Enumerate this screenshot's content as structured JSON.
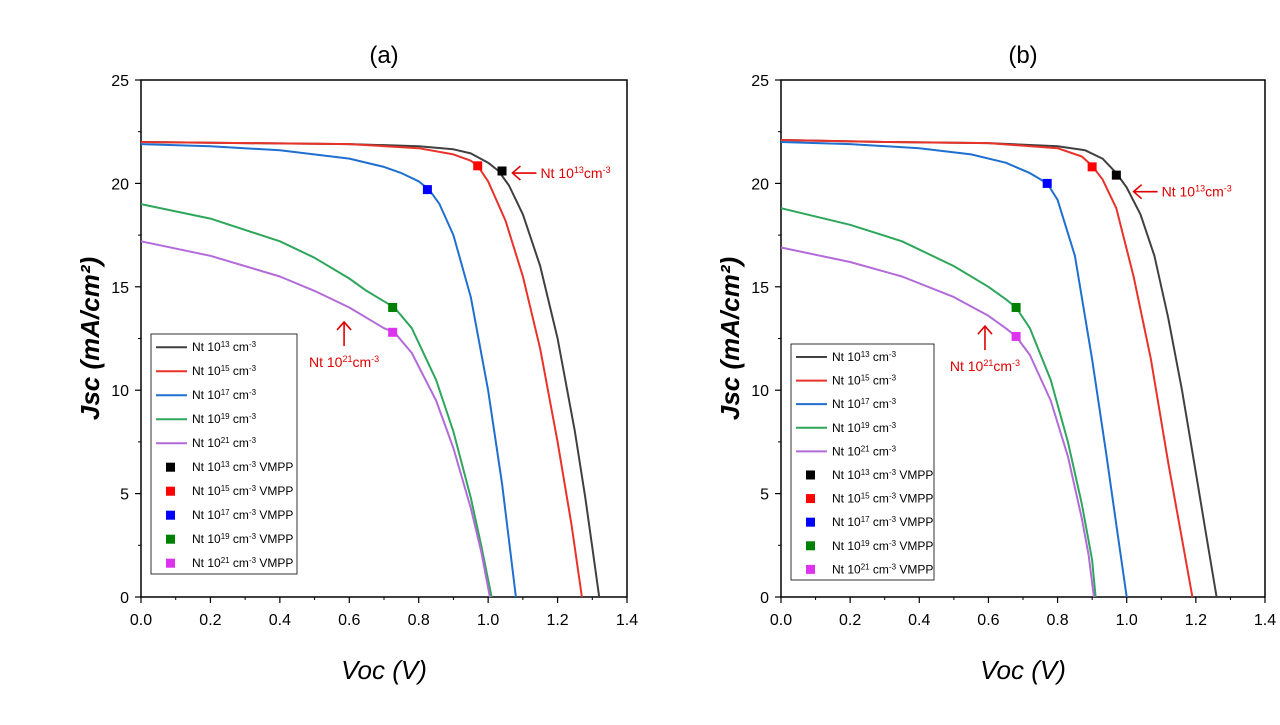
{
  "chart_data": [
    {
      "type": "line",
      "title": "(a)",
      "xlabel": "Voc (V)",
      "ylabel": "Jsc (mA/cm²)",
      "xlim": [
        0,
        1.4
      ],
      "ylim": [
        0,
        25
      ],
      "xticks": [
        "0.0",
        "0.2",
        "0.4",
        "0.6",
        "0.8",
        "1.0",
        "1.2",
        "1.4"
      ],
      "yticks": [
        "0",
        "5",
        "10",
        "15",
        "20",
        "25"
      ],
      "grid": false,
      "legend_position": "bottom-left",
      "series": [
        {
          "name": "Nt 10",
          "sup": "13",
          "unit": " cm",
          "unit_sup": "-3",
          "color": "#404040",
          "x": [
            0,
            0.3,
            0.6,
            0.8,
            0.9,
            0.95,
            1.0,
            1.03,
            1.06,
            1.1,
            1.15,
            1.2,
            1.25,
            1.28,
            1.3,
            1.32
          ],
          "y": [
            22.0,
            21.95,
            21.9,
            21.8,
            21.65,
            21.45,
            21.0,
            20.6,
            19.9,
            18.5,
            16.0,
            12.5,
            8.0,
            4.8,
            2.4,
            0
          ]
        },
        {
          "name": "Nt 10",
          "sup": "15",
          "unit": " cm",
          "unit_sup": "-3",
          "color": "#e8322a",
          "x": [
            0,
            0.3,
            0.6,
            0.8,
            0.9,
            0.95,
            0.97,
            1.0,
            1.05,
            1.1,
            1.15,
            1.2,
            1.24,
            1.27
          ],
          "y": [
            22.0,
            21.95,
            21.9,
            21.7,
            21.4,
            21.1,
            20.85,
            20.1,
            18.2,
            15.5,
            12.0,
            7.5,
            3.5,
            0
          ]
        },
        {
          "name": "Nt 10",
          "sup": "17",
          "unit": " cm",
          "unit_sup": "-3",
          "color": "#1f6fd0",
          "x": [
            0,
            0.2,
            0.4,
            0.6,
            0.7,
            0.75,
            0.8,
            0.83,
            0.86,
            0.9,
            0.95,
            1.0,
            1.04,
            1.08
          ],
          "y": [
            21.9,
            21.8,
            21.6,
            21.2,
            20.8,
            20.5,
            20.1,
            19.7,
            19.0,
            17.5,
            14.5,
            10.0,
            5.5,
            0
          ]
        },
        {
          "name": "Nt 10",
          "sup": "19",
          "unit": " cm",
          "unit_sup": "-3",
          "color": "#2ea65c",
          "x": [
            0,
            0.2,
            0.4,
            0.5,
            0.6,
            0.65,
            0.7,
            0.73,
            0.78,
            0.85,
            0.9,
            0.95,
            0.98,
            1.01
          ],
          "y": [
            19.0,
            18.3,
            17.2,
            16.4,
            15.4,
            14.8,
            14.3,
            14.0,
            13.0,
            10.5,
            8.0,
            4.8,
            2.5,
            0
          ]
        },
        {
          "name": "Nt 10",
          "sup": "21",
          "unit": " cm",
          "unit_sup": "-3",
          "color": "#b26bd8",
          "x": [
            0,
            0.2,
            0.4,
            0.5,
            0.6,
            0.65,
            0.7,
            0.73,
            0.78,
            0.85,
            0.9,
            0.95,
            0.98,
            1.005
          ],
          "y": [
            17.2,
            16.5,
            15.5,
            14.8,
            14.0,
            13.5,
            13.0,
            12.8,
            11.8,
            9.5,
            7.2,
            4.3,
            2.2,
            0
          ]
        }
      ],
      "vmpp": [
        {
          "name": "Nt 10",
          "sup": "13",
          "unit": " cm",
          "unit_sup": "-3",
          "suffix": " VMPP",
          "color": "#000000",
          "x": 1.04,
          "y": 20.6
        },
        {
          "name": "Nt 10",
          "sup": "15",
          "unit": " cm",
          "unit_sup": "-3",
          "suffix": " VMPP",
          "color": "#ff0000",
          "x": 0.97,
          "y": 20.85
        },
        {
          "name": "Nt 10",
          "sup": "17",
          "unit": " cm",
          "unit_sup": "-3",
          "suffix": " VMPP",
          "color": "#0000ff",
          "x": 0.825,
          "y": 19.7
        },
        {
          "name": "Nt 10",
          "sup": "19",
          "unit": " cm",
          "unit_sup": "-3",
          "suffix": " VMPP",
          "color": "#008000",
          "x": 0.725,
          "y": 14.0
        },
        {
          "name": "Nt 10",
          "sup": "21",
          "unit": " cm",
          "unit_sup": "-3",
          "suffix": " VMPP",
          "color": "#dd33ee",
          "x": 0.725,
          "y": 12.8
        }
      ],
      "annotations": [
        {
          "text": "Nt 10",
          "sup": "13",
          "unit": "cm",
          "unit_sup": "-3",
          "arrow": "left",
          "x": 1.07,
          "y": 20.5
        },
        {
          "text": "Nt 10",
          "sup": "21",
          "unit": "cm",
          "unit_sup": "-3",
          "arrow": "up",
          "x": 0.585,
          "y": 13.3
        }
      ]
    },
    {
      "type": "line",
      "title": "(b)",
      "xlabel": "Voc (V)",
      "ylabel": "Jsc (mA/cm²)",
      "xlim": [
        0,
        1.4
      ],
      "ylim": [
        0,
        25
      ],
      "xticks": [
        "0.0",
        "0.2",
        "0.4",
        "0.6",
        "0.8",
        "1.0",
        "1.2",
        "1.4"
      ],
      "yticks": [
        "0",
        "5",
        "10",
        "15",
        "20",
        "25"
      ],
      "grid": false,
      "legend_position": "bottom-left",
      "series": [
        {
          "name": "Nt 10",
          "sup": "13",
          "unit": " cm",
          "unit_sup": "-3",
          "color": "#404040",
          "x": [
            0,
            0.3,
            0.6,
            0.8,
            0.88,
            0.93,
            0.97,
            1.0,
            1.04,
            1.08,
            1.12,
            1.16,
            1.2,
            1.23,
            1.26
          ],
          "y": [
            22.1,
            22.0,
            21.95,
            21.8,
            21.6,
            21.2,
            20.5,
            19.8,
            18.5,
            16.5,
            13.5,
            10.0,
            6.0,
            3.0,
            0
          ]
        },
        {
          "name": "Nt 10",
          "sup": "15",
          "unit": " cm",
          "unit_sup": "-3",
          "color": "#e8322a",
          "x": [
            0,
            0.3,
            0.6,
            0.8,
            0.87,
            0.9,
            0.93,
            0.97,
            1.02,
            1.07,
            1.12,
            1.16,
            1.19
          ],
          "y": [
            22.1,
            22.0,
            21.95,
            21.7,
            21.3,
            20.85,
            20.2,
            18.8,
            15.5,
            11.5,
            6.5,
            2.8,
            0
          ]
        },
        {
          "name": "Nt 10",
          "sup": "17",
          "unit": " cm",
          "unit_sup": "-3",
          "color": "#1f6fd0",
          "x": [
            0,
            0.2,
            0.4,
            0.55,
            0.65,
            0.72,
            0.77,
            0.8,
            0.85,
            0.9,
            0.94,
            0.97,
            1.0
          ],
          "y": [
            22.0,
            21.9,
            21.7,
            21.4,
            21.0,
            20.5,
            20.0,
            19.2,
            16.5,
            11.5,
            7.0,
            3.5,
            0
          ]
        },
        {
          "name": "Nt 10",
          "sup": "19",
          "unit": " cm",
          "unit_sup": "-3",
          "color": "#2ea65c",
          "x": [
            0,
            0.2,
            0.35,
            0.5,
            0.6,
            0.65,
            0.68,
            0.72,
            0.78,
            0.83,
            0.87,
            0.9,
            0.91
          ],
          "y": [
            18.8,
            18.0,
            17.2,
            16.0,
            15.0,
            14.4,
            14.0,
            13.0,
            10.5,
            7.5,
            4.5,
            1.8,
            0
          ]
        },
        {
          "name": "Nt 10",
          "sup": "21",
          "unit": " cm",
          "unit_sup": "-3",
          "color": "#b26bd8",
          "x": [
            0,
            0.2,
            0.35,
            0.5,
            0.6,
            0.65,
            0.68,
            0.72,
            0.78,
            0.83,
            0.87,
            0.89,
            0.905
          ],
          "y": [
            16.9,
            16.2,
            15.5,
            14.5,
            13.6,
            13.0,
            12.6,
            11.7,
            9.5,
            6.8,
            3.8,
            2.0,
            0
          ]
        }
      ],
      "vmpp": [
        {
          "name": "Nt 10",
          "sup": "13",
          "unit": " cm",
          "unit_sup": "-3",
          "suffix": " VMPP",
          "color": "#000000",
          "x": 0.97,
          "y": 20.4
        },
        {
          "name": "Nt 10",
          "sup": "15",
          "unit": " cm",
          "unit_sup": "-3",
          "suffix": " VMPP",
          "color": "#ff0000",
          "x": 0.9,
          "y": 20.8
        },
        {
          "name": "Nt 10",
          "sup": "17",
          "unit": " cm",
          "unit_sup": "-3",
          "suffix": " VMPP",
          "color": "#0000ff",
          "x": 0.77,
          "y": 20.0
        },
        {
          "name": "Nt 10",
          "sup": "19",
          "unit": " cm",
          "unit_sup": "-3",
          "suffix": " VMPP",
          "color": "#008000",
          "x": 0.68,
          "y": 14.0
        },
        {
          "name": "Nt 10",
          "sup": "21",
          "unit": " cm",
          "unit_sup": "-3",
          "suffix": " VMPP",
          "color": "#dd33ee",
          "x": 0.68,
          "y": 12.6
        }
      ],
      "annotations": [
        {
          "text": "Nt 10",
          "sup": "13",
          "unit": "cm",
          "unit_sup": "-3",
          "arrow": "left",
          "x": 1.02,
          "y": 19.6
        },
        {
          "text": "Nt 10",
          "sup": "21",
          "unit": "cm",
          "unit_sup": "-3",
          "arrow": "up",
          "x": 0.59,
          "y": 13.1
        }
      ]
    }
  ]
}
